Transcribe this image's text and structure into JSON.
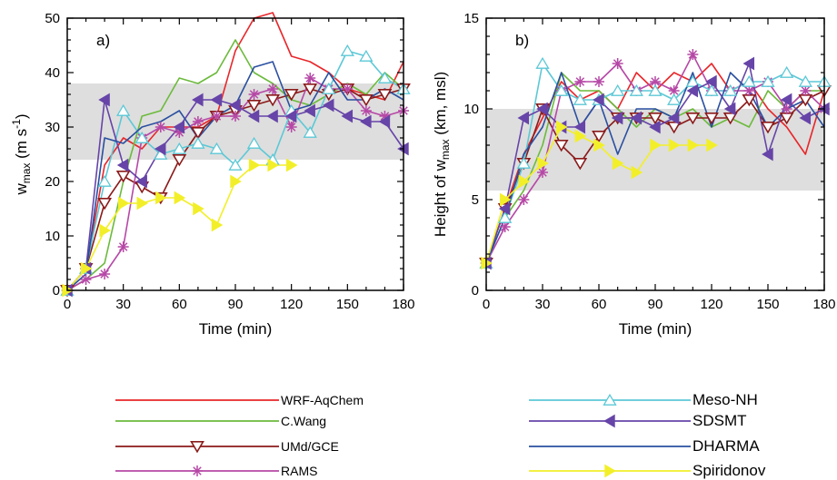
{
  "chart_data": [
    {
      "type": "line",
      "panel_label": "a)",
      "xlabel": "Time (min)",
      "ylabel": "w_max (m s^-1)",
      "xlim": [
        0,
        180
      ],
      "ylim": [
        0,
        50
      ],
      "xticks": [
        0,
        30,
        60,
        90,
        120,
        150,
        180
      ],
      "yticks": [
        0,
        10,
        20,
        30,
        40,
        50
      ],
      "shaded_band": [
        24,
        38
      ],
      "series": [
        {
          "name": "WRF-AqChem",
          "x": [
            0,
            10,
            20,
            30,
            40,
            50,
            60,
            70,
            80,
            90,
            100,
            110,
            120,
            130,
            140,
            150,
            160,
            170,
            180
          ],
          "y": [
            0,
            4,
            23,
            28,
            26,
            30,
            30,
            30,
            32,
            44,
            50,
            51,
            43,
            42,
            40,
            37,
            36,
            35,
            42
          ]
        },
        {
          "name": "C.Wang",
          "x": [
            0,
            10,
            20,
            30,
            40,
            50,
            60,
            70,
            80,
            90,
            100,
            110,
            120,
            130,
            140,
            150,
            160,
            170,
            180
          ],
          "y": [
            0,
            2,
            5,
            20,
            32,
            33,
            39,
            38,
            40,
            46,
            40,
            38,
            35,
            34,
            36,
            38,
            36,
            40,
            37
          ]
        },
        {
          "name": "UMd/GCE",
          "x": [
            0,
            10,
            20,
            30,
            40,
            50,
            60,
            70,
            80,
            90,
            100,
            110,
            120,
            130,
            140,
            150,
            160,
            170,
            180
          ],
          "y": [
            0,
            4,
            16,
            21,
            19,
            17,
            24,
            29,
            32,
            33,
            34,
            35,
            36,
            37,
            36,
            37,
            35,
            36,
            37
          ]
        },
        {
          "name": "RAMS",
          "x": [
            0,
            10,
            20,
            30,
            40,
            50,
            60,
            70,
            80,
            90,
            100,
            110,
            120,
            130,
            140,
            150,
            160,
            170,
            180
          ],
          "y": [
            0,
            2,
            3,
            8,
            28,
            30,
            29,
            31,
            32,
            32,
            36,
            37,
            30,
            39,
            37,
            37,
            33,
            32,
            33
          ]
        },
        {
          "name": "Meso-NH",
          "x": [
            0,
            10,
            20,
            30,
            40,
            50,
            60,
            70,
            80,
            90,
            100,
            110,
            120,
            130,
            140,
            150,
            160,
            170,
            180
          ],
          "y": [
            0,
            4,
            20,
            33,
            28,
            25,
            26,
            27,
            26,
            23,
            27,
            24,
            33,
            29,
            37,
            44,
            43,
            39,
            37
          ]
        },
        {
          "name": "SDSMT",
          "x": [
            0,
            10,
            20,
            30,
            40,
            50,
            60,
            70,
            80,
            90,
            100,
            110,
            120,
            130,
            140,
            150,
            160,
            170,
            180
          ],
          "y": [
            0,
            4,
            35,
            23,
            20,
            26,
            30,
            35,
            35,
            34,
            32,
            32,
            32,
            33,
            34,
            32,
            31,
            31,
            26
          ]
        },
        {
          "name": "DHARMA",
          "x": [
            0,
            10,
            20,
            30,
            40,
            50,
            60,
            70,
            80,
            90,
            100,
            110,
            120,
            130,
            140,
            150,
            160,
            170,
            180
          ],
          "y": [
            0,
            3,
            28,
            27,
            30,
            31,
            33,
            28,
            32,
            34,
            41,
            42,
            33,
            34,
            40,
            35,
            35,
            37,
            35
          ]
        },
        {
          "name": "Spiridonov",
          "x": [
            0,
            10,
            20,
            30,
            40,
            50,
            60,
            70,
            80,
            90,
            100,
            110,
            120
          ],
          "y": [
            0,
            4,
            11,
            16,
            16,
            17,
            17,
            15,
            12,
            20,
            23,
            23,
            23
          ]
        }
      ]
    },
    {
      "type": "line",
      "panel_label": "b)",
      "xlabel": "Time (min)",
      "ylabel": "Height of w_max (km, msl)",
      "xlim": [
        0,
        180
      ],
      "ylim": [
        0,
        15
      ],
      "xticks": [
        0,
        30,
        60,
        90,
        120,
        150,
        180
      ],
      "yticks": [
        0,
        5,
        10,
        15
      ],
      "shaded_band": [
        5.5,
        10
      ],
      "series": [
        {
          "name": "WRF-AqChem",
          "x": [
            0,
            10,
            20,
            30,
            40,
            50,
            60,
            70,
            80,
            90,
            100,
            110,
            120,
            130,
            140,
            150,
            160,
            170,
            180
          ],
          "y": [
            1.5,
            4.5,
            7.5,
            9.5,
            11.5,
            10.5,
            11,
            10,
            12,
            11,
            12,
            11.5,
            12.5,
            11,
            11.5,
            10,
            9,
            7.5,
            11
          ]
        },
        {
          "name": "C.Wang",
          "x": [
            0,
            10,
            20,
            30,
            40,
            50,
            60,
            70,
            80,
            90,
            100,
            110,
            120,
            130,
            140,
            150,
            160,
            170,
            180
          ],
          "y": [
            1.5,
            4,
            5.5,
            8,
            12,
            11,
            11,
            10,
            9,
            10,
            9.5,
            10,
            9,
            9.5,
            9,
            11,
            10,
            11,
            11
          ]
        },
        {
          "name": "UMd/GCE",
          "x": [
            0,
            10,
            20,
            30,
            40,
            50,
            60,
            70,
            80,
            90,
            100,
            110,
            120,
            130,
            140,
            150,
            160,
            170,
            180
          ],
          "y": [
            1.5,
            4.5,
            7,
            10,
            8,
            7,
            8.5,
            9.5,
            9.5,
            9.5,
            9,
            9.5,
            9.5,
            9.5,
            10.5,
            9,
            9.5,
            10.5,
            11
          ]
        },
        {
          "name": "RAMS",
          "x": [
            0,
            10,
            20,
            30,
            40,
            50,
            60,
            70,
            80,
            90,
            100,
            110,
            120,
            130,
            140,
            150,
            160,
            170,
            180
          ],
          "y": [
            1.5,
            3.5,
            5,
            6.5,
            11,
            11.5,
            11.5,
            12.5,
            11,
            11.5,
            11,
            13,
            11,
            11,
            11,
            11.5,
            10,
            11,
            10
          ]
        },
        {
          "name": "Meso-NH",
          "x": [
            0,
            10,
            20,
            30,
            40,
            50,
            60,
            70,
            80,
            90,
            100,
            110,
            120,
            130,
            140,
            150,
            160,
            170,
            180
          ],
          "y": [
            1.5,
            4,
            7,
            12.5,
            11,
            10.5,
            10.5,
            11,
            11,
            11,
            10.5,
            11.5,
            11,
            11,
            11.5,
            11.5,
            12,
            11.5,
            11.5
          ]
        },
        {
          "name": "SDSMT",
          "x": [
            0,
            10,
            20,
            30,
            40,
            50,
            60,
            70,
            80,
            90,
            100,
            110,
            120,
            130,
            140,
            150,
            160,
            170,
            180
          ],
          "y": [
            1.5,
            4.5,
            9.5,
            10,
            9,
            9,
            10.5,
            9.5,
            9.5,
            9,
            9.5,
            11,
            11.5,
            10,
            12.5,
            7.5,
            10.5,
            9.5,
            10
          ]
        },
        {
          "name": "DHARMA",
          "x": [
            0,
            10,
            20,
            30,
            40,
            50,
            60,
            70,
            80,
            90,
            100,
            110,
            120,
            130,
            140,
            150,
            160,
            170,
            180
          ],
          "y": [
            1.5,
            4,
            7.5,
            9,
            12,
            9,
            10.5,
            7.5,
            10,
            10,
            9.5,
            12,
            9,
            12,
            11,
            9,
            10,
            10.5,
            9
          ]
        },
        {
          "name": "Spiridonov",
          "x": [
            0,
            10,
            20,
            30,
            40,
            50,
            60,
            70,
            80,
            90,
            100,
            110,
            120
          ],
          "y": [
            1.5,
            5,
            6,
            7,
            9,
            8.5,
            8,
            7,
            6.5,
            8,
            8,
            8,
            8
          ]
        }
      ]
    }
  ],
  "legend": {
    "entries": [
      {
        "name": "WRF-AqChem",
        "column": 0,
        "row": 0
      },
      {
        "name": "C.Wang",
        "column": 0,
        "row": 1
      },
      {
        "name": "UMd/GCE",
        "column": 0,
        "row": 2
      },
      {
        "name": "RAMS",
        "column": 0,
        "row": 3
      },
      {
        "name": "Meso-NH",
        "column": 1,
        "row": 0
      },
      {
        "name": "SDSMT",
        "column": 1,
        "row": 1
      },
      {
        "name": "DHARMA",
        "column": 1,
        "row": 2
      },
      {
        "name": "Spiridonov",
        "column": 1,
        "row": 3
      }
    ]
  },
  "styles": {
    "WRF-AqChem": {
      "color": "#e8262a",
      "marker": "none"
    },
    "C.Wang": {
      "color": "#6cba3c",
      "marker": "none"
    },
    "UMd/GCE": {
      "color": "#8b1a1a",
      "marker": "triangle-down-open"
    },
    "RAMS": {
      "color": "#b648a6",
      "marker": "asterisk"
    },
    "Meso-NH": {
      "color": "#5cc8d6",
      "marker": "triangle-up-open"
    },
    "SDSMT": {
      "color": "#6644a8",
      "marker": "triangle-left-filled"
    },
    "DHARMA": {
      "color": "#2a4fa0",
      "marker": "none"
    },
    "Spiridonov": {
      "color": "#f2ef2a",
      "marker": "triangle-right-filled"
    },
    "band": "#dedede"
  }
}
